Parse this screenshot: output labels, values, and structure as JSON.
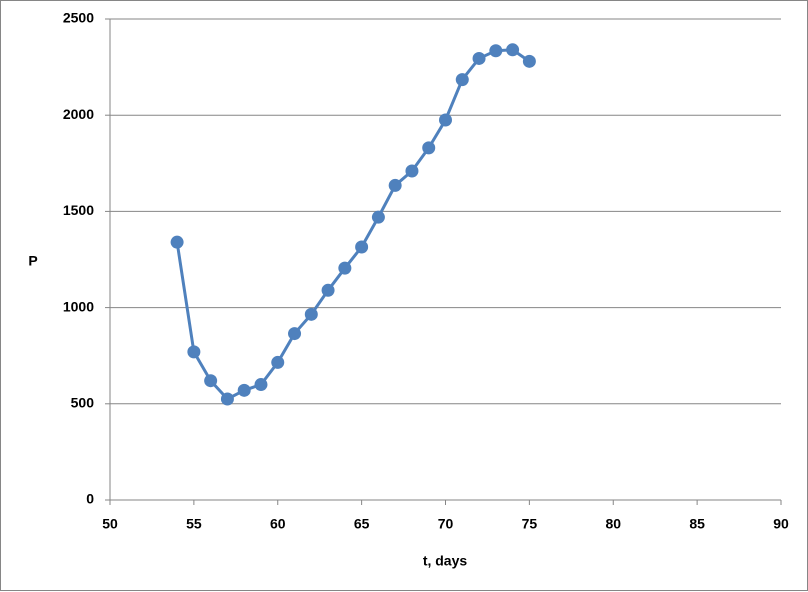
{
  "chart_data": {
    "type": "line",
    "xlabel": "t, days",
    "ylabel": "P",
    "x": [
      54,
      55,
      56,
      57,
      58,
      59,
      60,
      61,
      62,
      63,
      64,
      65,
      66,
      67,
      68,
      69,
      70,
      71,
      72,
      73,
      74,
      75
    ],
    "series": [
      {
        "color": "#4f81bd",
        "values": [
          1340,
          770,
          620,
          525,
          570,
          600,
          715,
          865,
          965,
          1090,
          1205,
          1315,
          1470,
          1635,
          1710,
          1830,
          1975,
          2185,
          2295,
          2335,
          2340,
          2280
        ]
      }
    ],
    "xlim": [
      50,
      90
    ],
    "xticks": [
      50,
      55,
      60,
      65,
      70,
      75,
      80,
      85,
      90
    ],
    "ylim": [
      0,
      2500
    ],
    "yticks": [
      0,
      500,
      1000,
      1500,
      2000,
      2500
    ],
    "grid": true
  }
}
